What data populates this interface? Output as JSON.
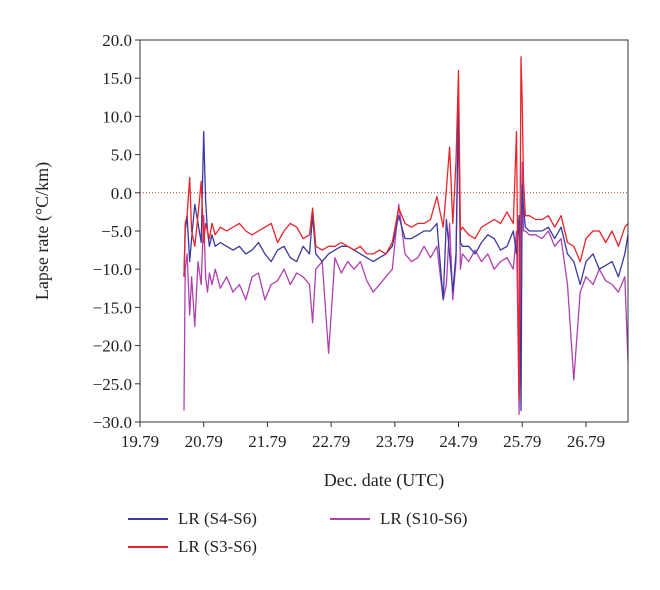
{
  "chart_data": {
    "type": "line",
    "title": "",
    "xlabel": "Dec. date (UTC)",
    "ylabel": "Lapse rate (°C/km)",
    "xlim": [
      19.79,
      27.45
    ],
    "ylim": [
      -30.0,
      20.0
    ],
    "xticks": [
      19.79,
      20.79,
      21.79,
      22.79,
      23.79,
      24.79,
      25.79,
      26.79
    ],
    "xtick_labels": [
      "19.79",
      "20.79",
      "21.79",
      "22.79",
      "23.79",
      "24.79",
      "25.79",
      "26.79"
    ],
    "yticks": [
      -30,
      -25,
      -20,
      -15,
      -10,
      -5,
      0,
      5,
      10,
      15,
      20
    ],
    "ytick_labels": [
      "−30.0",
      "−25.0",
      "−20.0",
      "−15.0",
      "−10.0",
      "−5.0",
      "0.0",
      "5.0",
      "10.0",
      "15.0",
      "20.0"
    ],
    "reference_line": {
      "y": 0,
      "color": "#c0392b",
      "style": "dotted"
    },
    "grid": false,
    "legend_position": "bottom",
    "series": [
      {
        "name": "LR (S4-S6)",
        "color": "#3a3aa0",
        "x": [
          20.48,
          20.5,
          20.53,
          20.57,
          20.6,
          20.65,
          20.7,
          20.75,
          20.79,
          20.82,
          20.85,
          20.88,
          20.92,
          20.97,
          21.05,
          21.15,
          21.25,
          21.35,
          21.45,
          21.55,
          21.65,
          21.75,
          21.85,
          21.95,
          22.05,
          22.15,
          22.25,
          22.35,
          22.45,
          22.5,
          22.55,
          22.65,
          22.75,
          22.85,
          22.95,
          23.05,
          23.15,
          23.25,
          23.35,
          23.45,
          23.55,
          23.65,
          23.75,
          23.85,
          23.95,
          24.05,
          24.15,
          24.25,
          24.35,
          24.45,
          24.55,
          24.6,
          24.65,
          24.7,
          24.75,
          24.79,
          24.82,
          24.85,
          24.95,
          25.05,
          25.15,
          25.25,
          25.35,
          25.45,
          25.55,
          25.65,
          25.7,
          25.74,
          25.77,
          25.79,
          25.81,
          25.84,
          25.9,
          26.0,
          26.1,
          26.2,
          26.3,
          26.4,
          26.5,
          26.6,
          26.7,
          26.79,
          26.9,
          27.0,
          27.1,
          27.2,
          27.3,
          27.4,
          27.45
        ],
        "y": [
          -11.0,
          -5.0,
          -3.0,
          -9.0,
          -6.0,
          -1.5,
          -4.0,
          -6.5,
          8.0,
          -1.0,
          -5.0,
          -7.0,
          -5.5,
          -7.0,
          -6.5,
          -7.0,
          -7.5,
          -7.0,
          -8.0,
          -7.5,
          -6.5,
          -8.0,
          -9.0,
          -7.5,
          -7.0,
          -8.5,
          -9.0,
          -7.0,
          -8.0,
          -3.0,
          -8.0,
          -9.0,
          -8.0,
          -7.5,
          -7.0,
          -7.0,
          -7.5,
          -8.0,
          -8.5,
          -9.0,
          -8.5,
          -8.0,
          -7.0,
          -3.0,
          -6.0,
          -6.0,
          -5.5,
          -5.0,
          -5.0,
          -4.0,
          -14.0,
          -3.5,
          -8.0,
          -13.0,
          -8.0,
          12.0,
          -6.5,
          -7.0,
          -7.0,
          -8.0,
          -6.5,
          -5.5,
          -6.0,
          -7.5,
          -7.0,
          -5.0,
          -8.0,
          -3.0,
          -28.5,
          1.0,
          -2.0,
          -4.5,
          -5.0,
          -5.0,
          -5.0,
          -4.5,
          -6.0,
          -4.5,
          -8.0,
          -9.0,
          -12.0,
          -9.0,
          -8.0,
          -10.0,
          -9.5,
          -9.0,
          -11.0,
          -8.0,
          -5.5
        ]
      },
      {
        "name": "LR (S3-S6)",
        "color": "#e8242a",
        "x": [
          20.48,
          20.5,
          20.53,
          20.57,
          20.6,
          20.65,
          20.7,
          20.75,
          20.79,
          20.82,
          20.85,
          20.88,
          20.92,
          20.97,
          21.05,
          21.15,
          21.25,
          21.35,
          21.45,
          21.55,
          21.65,
          21.75,
          21.85,
          21.95,
          22.05,
          22.15,
          22.25,
          22.35,
          22.45,
          22.5,
          22.55,
          22.65,
          22.75,
          22.85,
          22.95,
          23.05,
          23.15,
          23.25,
          23.35,
          23.45,
          23.55,
          23.65,
          23.75,
          23.85,
          23.95,
          24.05,
          24.15,
          24.25,
          24.35,
          24.45,
          24.55,
          24.6,
          24.65,
          24.7,
          24.75,
          24.79,
          24.82,
          24.85,
          24.95,
          25.05,
          25.15,
          25.25,
          25.35,
          25.45,
          25.55,
          25.65,
          25.7,
          25.74,
          25.77,
          25.79,
          25.81,
          25.84,
          25.9,
          26.0,
          26.1,
          26.2,
          26.3,
          26.4,
          26.5,
          26.6,
          26.7,
          26.79,
          26.9,
          27.0,
          27.1,
          27.2,
          27.3,
          27.4,
          27.45
        ],
        "y": [
          -11.0,
          -4.0,
          -3.0,
          2.0,
          -5.0,
          -7.0,
          -3.0,
          1.5,
          -6.5,
          -4.0,
          -5.0,
          -6.0,
          -4.0,
          -5.5,
          -4.5,
          -5.0,
          -4.5,
          -4.0,
          -5.0,
          -5.5,
          -5.0,
          -4.5,
          -4.0,
          -6.5,
          -5.0,
          -4.0,
          -4.5,
          -6.0,
          -5.5,
          -2.0,
          -7.0,
          -7.5,
          -7.0,
          -7.0,
          -6.5,
          -7.0,
          -7.5,
          -7.0,
          -8.0,
          -8.0,
          -7.5,
          -8.0,
          -6.5,
          -2.0,
          -4.0,
          -4.5,
          -4.0,
          -4.0,
          -3.5,
          -0.5,
          -4.5,
          0.5,
          6.0,
          -4.0,
          4.0,
          16.0,
          -5.0,
          -4.5,
          -5.5,
          -6.0,
          -4.5,
          -4.0,
          -3.5,
          -4.0,
          -2.5,
          -4.0,
          8.0,
          -27.0,
          17.8,
          12.0,
          1.5,
          -3.0,
          -3.0,
          -3.5,
          -3.5,
          -3.0,
          -4.5,
          -3.0,
          -6.5,
          -7.0,
          -9.0,
          -6.0,
          -5.0,
          -5.0,
          -6.5,
          -5.0,
          -7.0,
          -4.5,
          -4.0
        ]
      },
      {
        "name": "LR (S10-S6)",
        "color": "#b040b0",
        "x": [
          20.48,
          20.5,
          20.53,
          20.57,
          20.6,
          20.65,
          20.7,
          20.75,
          20.79,
          20.82,
          20.85,
          20.88,
          20.92,
          20.97,
          21.05,
          21.15,
          21.25,
          21.35,
          21.45,
          21.55,
          21.65,
          21.75,
          21.85,
          21.95,
          22.05,
          22.15,
          22.25,
          22.35,
          22.45,
          22.5,
          22.55,
          22.65,
          22.75,
          22.85,
          22.95,
          23.05,
          23.15,
          23.25,
          23.35,
          23.45,
          23.55,
          23.65,
          23.75,
          23.85,
          23.95,
          24.05,
          24.15,
          24.25,
          24.35,
          24.45,
          24.55,
          24.6,
          24.65,
          24.7,
          24.75,
          24.79,
          24.82,
          24.85,
          24.95,
          25.05,
          25.15,
          25.25,
          25.35,
          25.45,
          25.55,
          25.65,
          25.7,
          25.74,
          25.77,
          25.79,
          25.81,
          25.84,
          25.9,
          26.0,
          26.1,
          26.2,
          26.3,
          26.4,
          26.5,
          26.6,
          26.7,
          26.79,
          26.9,
          27.0,
          27.1,
          27.2,
          27.3,
          27.4,
          27.45
        ],
        "y": [
          -28.5,
          -10.0,
          -8.0,
          -16.0,
          -11.0,
          -17.5,
          -9.0,
          -12.0,
          -3.0,
          -11.0,
          -13.0,
          -10.5,
          -12.0,
          -10.0,
          -12.5,
          -11.0,
          -13.0,
          -12.0,
          -14.0,
          -11.0,
          -10.5,
          -14.0,
          -12.0,
          -11.5,
          -10.0,
          -12.0,
          -10.5,
          -11.0,
          -12.0,
          -17.0,
          -10.0,
          -9.0,
          -21.0,
          -8.5,
          -10.5,
          -9.0,
          -10.0,
          -9.0,
          -11.5,
          -13.0,
          -12.0,
          -11.0,
          -10.0,
          -1.5,
          -8.0,
          -9.0,
          -8.5,
          -7.0,
          -8.5,
          -7.0,
          -14.0,
          -12.0,
          -4.0,
          -14.0,
          -9.0,
          10.0,
          -10.0,
          -8.0,
          -9.0,
          -7.5,
          -9.0,
          -8.0,
          -10.0,
          -9.0,
          -8.5,
          -10.0,
          -5.0,
          -29.0,
          -6.0,
          4.0,
          -5.0,
          -5.0,
          -5.5,
          -5.5,
          -6.0,
          -5.0,
          -7.0,
          -6.0,
          -12.0,
          -24.5,
          -13.0,
          -11.0,
          -12.0,
          -10.0,
          -11.5,
          -12.0,
          -13.0,
          -11.0,
          -22.0
        ]
      }
    ]
  }
}
